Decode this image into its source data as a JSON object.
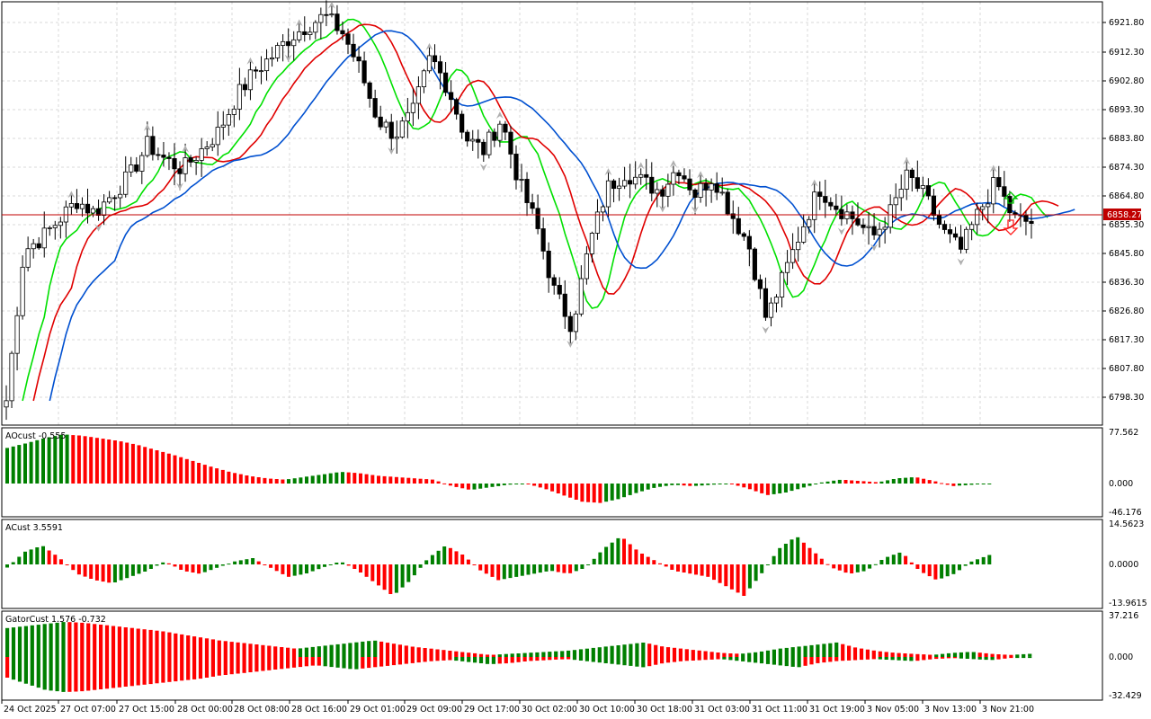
{
  "colors": {
    "bull": "#007f00",
    "bear": "#ff0000",
    "alligator_lips": "#00e000",
    "alligator_teeth": "#e00000",
    "alligator_jaw": "#0050d0",
    "price_line": "#c00000",
    "fractal": "#b0b0b0",
    "grid": "#d8d8d8"
  },
  "main": {
    "price_axis_ticks": [
      "6921.80",
      "6912.30",
      "6902.80",
      "6893.30",
      "6883.80",
      "6874.30",
      "6864.80",
      "6855.30",
      "6845.80",
      "6836.30",
      "6826.80",
      "6817.30",
      "6807.80",
      "6798.30"
    ],
    "current_price": "6858.27",
    "signals": [
      "buy-arrow",
      "sell-arrow"
    ]
  },
  "panels": {
    "ao": {
      "label": "AOcust -0.555",
      "ticks": [
        "77.562",
        "0.000",
        "-46.176"
      ]
    },
    "ac": {
      "label": "ACust 3.5591",
      "ticks": [
        "14.5623",
        "0.0000",
        "-13.9615"
      ]
    },
    "gator": {
      "label": "GatorCust 1.576 -0.732",
      "ticks": [
        "37.216",
        "0.000",
        "-32.429"
      ]
    }
  },
  "time_axis": [
    "24 Oct 2025",
    "27 Oct 07:00",
    "27 Oct 15:00",
    "28 Oct 00:00",
    "28 Oct 08:00",
    "28 Oct 16:00",
    "29 Oct 01:00",
    "29 Oct 09:00",
    "29 Oct 17:00",
    "30 Oct 02:00",
    "30 Oct 10:00",
    "30 Oct 18:00",
    "31 Oct 03:00",
    "31 Oct 11:00",
    "31 Oct 19:00",
    "3 Nov 05:00",
    "3 Nov 13:00",
    "3 Nov 21:00"
  ],
  "chart_data": {
    "type": "candlestick",
    "symbol_units": "price",
    "ylim": [
      6793,
      6927
    ],
    "close_path": [
      6800,
      6848,
      6852,
      6858,
      6864,
      6860,
      6866,
      6872,
      6882,
      6877,
      6874,
      6880,
      6886,
      6897,
      6905,
      6910,
      6916,
      6920,
      6923,
      6918,
      6906,
      6890,
      6885,
      6892,
      6910,
      6900,
      6884,
      6880,
      6890,
      6870,
      6856,
      6835,
      6824,
      6850,
      6868,
      6873,
      6870,
      6867,
      6875,
      6866,
      6872,
      6860,
      6850,
      6826,
      6840,
      6855,
      6868,
      6862,
      6858,
      6852,
      6860,
      6872,
      6865,
      6854,
      6848,
      6860,
      6870,
      6858,
      6857
    ],
    "alligator_series": [
      {
        "name": "lips"
      },
      {
        "name": "teeth"
      },
      {
        "name": "jaw"
      }
    ],
    "ao_values": [
      55,
      62,
      70,
      76,
      74,
      70,
      66,
      60,
      52,
      44,
      35,
      26,
      18,
      12,
      8,
      6,
      10,
      14,
      18,
      16,
      12,
      10,
      8,
      6,
      -4,
      -10,
      -6,
      -2,
      0,
      -8,
      -18,
      -28,
      -30,
      -24,
      -14,
      -6,
      -2,
      -4,
      -2,
      0,
      -8,
      -18,
      -14,
      -6,
      2,
      6,
      4,
      2,
      8,
      10,
      4,
      -4,
      -2,
      0
    ],
    "ac_values": [
      -2,
      8,
      12,
      4,
      -6,
      -10,
      -12,
      -8,
      -4,
      2,
      -4,
      -6,
      -2,
      2,
      4,
      -2,
      -8,
      -6,
      -2,
      2,
      -4,
      -12,
      -20,
      -10,
      4,
      12,
      6,
      -4,
      -10,
      -8,
      -6,
      -4,
      -6,
      -2,
      10,
      18,
      8,
      2,
      -4,
      -6,
      -8,
      -14,
      -20,
      -6,
      10,
      18,
      8,
      -2,
      -6,
      -4,
      4,
      8,
      -4,
      -10,
      -6,
      2,
      6
    ],
    "gator_upper": [
      28,
      30,
      32,
      34,
      33,
      31,
      29,
      27,
      25,
      22,
      19,
      16,
      14,
      12,
      10,
      8,
      10,
      12,
      14,
      16,
      13,
      10,
      8,
      6,
      4,
      2,
      3,
      4,
      5,
      6,
      8,
      10,
      12,
      14,
      10,
      8,
      6,
      4,
      3,
      5,
      8,
      10,
      12,
      14,
      9,
      6,
      4,
      3,
      2,
      4,
      5,
      3,
      2,
      3
    ],
    "gator_lower": [
      -20,
      -26,
      -32,
      -34,
      -33,
      -31,
      -29,
      -27,
      -25,
      -23,
      -21,
      -18,
      -16,
      -14,
      -12,
      -10,
      -8,
      -10,
      -12,
      -10,
      -8,
      -6,
      -4,
      -3,
      -5,
      -7,
      -6,
      -4,
      -3,
      -2,
      -4,
      -6,
      -8,
      -10,
      -6,
      -4,
      -3,
      -2,
      -4,
      -6,
      -8,
      -10,
      -6,
      -4,
      -3,
      -2,
      -3,
      -4,
      -2,
      -1,
      -2,
      -3,
      -1,
      -1
    ]
  }
}
